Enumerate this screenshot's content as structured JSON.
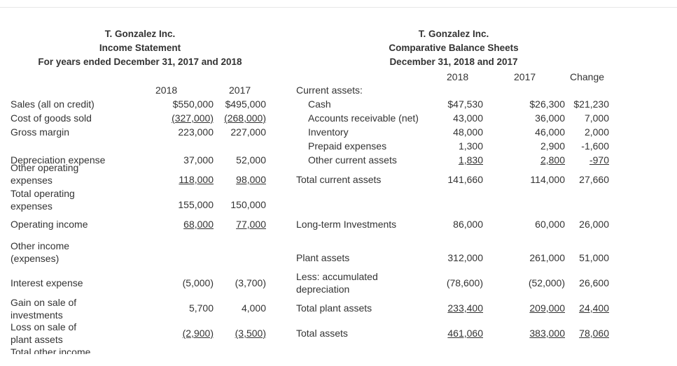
{
  "income_statement": {
    "company": "T. Gonzalez Inc.",
    "title": "Income Statement",
    "period": "For years ended December 31, 2017 and 2018",
    "columns": [
      "2018",
      "2017"
    ],
    "rows": [
      {
        "label": "Sales (all on credit)",
        "values": [
          "$550,000",
          "$495,000"
        ]
      },
      {
        "label": "Cost of goods sold",
        "values": [
          "(327,000)",
          "(268,000)"
        ]
      },
      {
        "label": "Gross margin",
        "values": [
          "223,000",
          "227,000"
        ]
      },
      {
        "label": "Depreciation expense",
        "values": [
          "37,000",
          "52,000"
        ]
      },
      {
        "label": "Other operating expenses",
        "values": [
          "118,000",
          "98,000"
        ]
      },
      {
        "label": "Total operating expenses",
        "values": [
          "155,000",
          "150,000"
        ]
      },
      {
        "label": "Operating income",
        "values": [
          "68,000",
          "77,000"
        ]
      },
      {
        "label": "Other income (expenses)"
      },
      {
        "label": "Interest expense",
        "values": [
          "(5,000)",
          "(3,700)"
        ]
      },
      {
        "label": "Gain on sale of investments",
        "values": [
          "5,700",
          "4,000"
        ]
      },
      {
        "label": "Loss on sale of plant assets",
        "values": [
          "(2,900)",
          "(3,500)"
        ]
      },
      {
        "label": "Total other income"
      }
    ]
  },
  "balance_sheet": {
    "company": "T. Gonzalez Inc.",
    "title": "Comparative Balance Sheets",
    "period": "December 31, 2018 and 2017",
    "columns": [
      "2018",
      "2017",
      "Change"
    ],
    "rows": [
      {
        "label": "Current assets:"
      },
      {
        "label": "Cash",
        "values": [
          "$47,530",
          "$26,300",
          "$21,230"
        ]
      },
      {
        "label": "Accounts receivable (net)",
        "values": [
          "43,000",
          "36,000",
          "7,000"
        ]
      },
      {
        "label": "Inventory",
        "values": [
          "48,000",
          "46,000",
          "2,000"
        ]
      },
      {
        "label": "Prepaid expenses",
        "values": [
          "1,300",
          "2,900",
          "-1,600"
        ]
      },
      {
        "label": "Other current assets",
        "values": [
          "1,830",
          "2,800",
          "-970"
        ]
      },
      {
        "label": "Total current assets",
        "values": [
          "141,660",
          "114,000",
          "27,660"
        ]
      },
      {
        "label": "Long-term Investments",
        "values": [
          "86,000",
          "60,000",
          "26,000"
        ]
      },
      {
        "label": "Plant assets",
        "values": [
          "312,000",
          "261,000",
          "51,000"
        ]
      },
      {
        "label": "Less: accumulated depreciation",
        "values": [
          "(78,600)",
          "(52,000)",
          "26,600"
        ]
      },
      {
        "label": "Total plant assets",
        "values": [
          "233,400",
          "209,000",
          "24,400"
        ]
      },
      {
        "label": "Total assets",
        "values": [
          "461,060",
          "383,000",
          "78,060"
        ]
      }
    ]
  }
}
